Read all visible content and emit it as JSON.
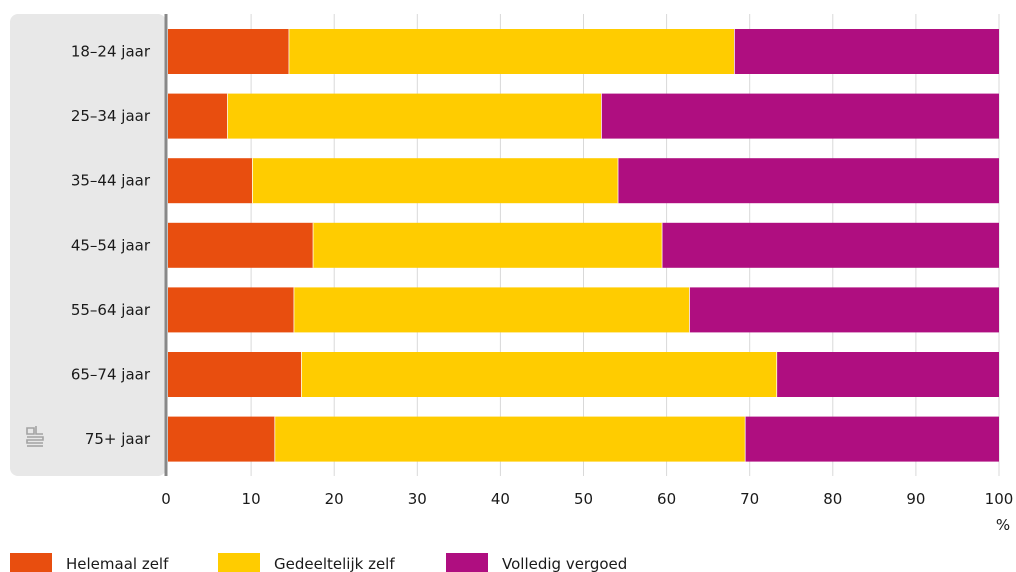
{
  "chart_data": {
    "type": "bar",
    "orientation": "horizontal",
    "stacked": true,
    "title": "",
    "xlabel": "",
    "ylabel": "",
    "unit": "%",
    "xlim": [
      0,
      100
    ],
    "xticks": [
      0,
      10,
      20,
      30,
      40,
      50,
      60,
      70,
      80,
      90,
      100
    ],
    "grid": "vertical",
    "legend_position": "bottom-left",
    "categories": [
      "18–24 jaar",
      "25–34 jaar",
      "35–44 jaar",
      "45–54 jaar",
      "55–64 jaar",
      "65–74 jaar",
      "75+ jaar"
    ],
    "series": [
      {
        "name": "Helemaal zelf",
        "color": "#e84e0f",
        "values": [
          14.6,
          7.2,
          10.2,
          17.5,
          15.2,
          16.1,
          12.9
        ]
      },
      {
        "name": "Gedeeltelijk zelf",
        "color": "#ffcc00",
        "values": [
          53.6,
          45.0,
          44.0,
          42.0,
          47.6,
          57.2,
          56.6
        ]
      },
      {
        "name": "Volledig vergoed",
        "color": "#af0e80",
        "values": [
          31.8,
          47.8,
          45.8,
          40.5,
          37.2,
          26.7,
          30.5
        ]
      }
    ]
  },
  "logo_icon": "cbs-logo-icon"
}
